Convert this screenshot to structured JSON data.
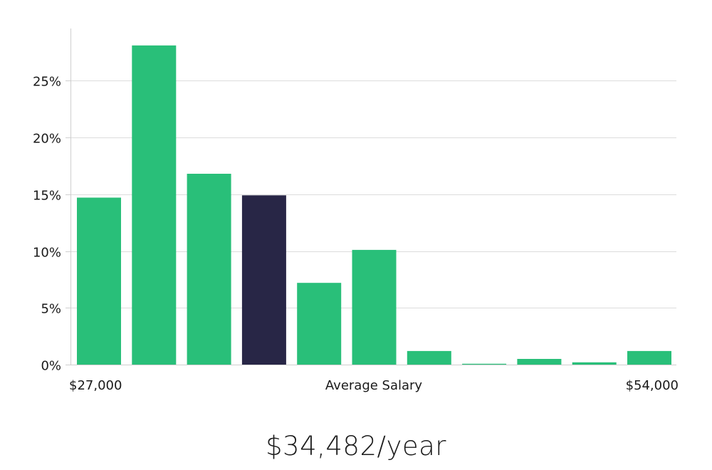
{
  "chart_data": {
    "type": "bar",
    "title": "",
    "xlabel": "Average Salary",
    "ylabel": "",
    "x_range_labels": [
      "$27,000",
      "$54,000"
    ],
    "ylim": [
      0,
      29.5
    ],
    "yticks": [
      0,
      5,
      10,
      15,
      20,
      25
    ],
    "ytick_labels": [
      "0%",
      "5%",
      "10%",
      "15%",
      "20%",
      "25%"
    ],
    "grid": true,
    "values": [
      14.7,
      28.1,
      16.8,
      14.9,
      7.2,
      10.1,
      1.2,
      0.05,
      0.5,
      0.2,
      1.2
    ],
    "highlight_index": 3,
    "colors": {
      "bar": "#29bf79",
      "highlight": "#282646"
    }
  },
  "summary": {
    "salary": "$34,482/year"
  }
}
